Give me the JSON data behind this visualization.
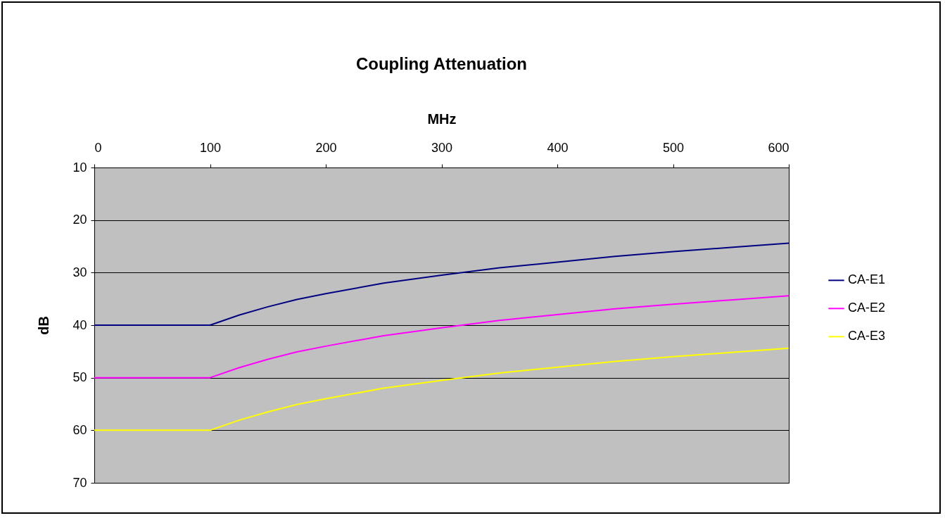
{
  "chart_data": {
    "type": "line",
    "title": "Coupling Attenuation",
    "xlabel": "MHz",
    "ylabel": "dB",
    "xlim": [
      0,
      600
    ],
    "xticks": [
      0,
      100,
      200,
      300,
      400,
      500,
      600
    ],
    "ylim": [
      70,
      10
    ],
    "yticks": [
      10,
      20,
      30,
      40,
      50,
      60,
      70
    ],
    "grid": "y",
    "legend": "right",
    "x": [
      0,
      100,
      125,
      150,
      175,
      200,
      250,
      300,
      350,
      400,
      450,
      500,
      550,
      600
    ],
    "series": [
      {
        "name": "CA-E1",
        "color": "#000080",
        "values": [
          40,
          40,
          38.1,
          36.5,
          35.1,
          34,
          32,
          30.5,
          29.1,
          28,
          26.9,
          26,
          25.2,
          24.4
        ]
      },
      {
        "name": "CA-E2",
        "color": "#ff00ff",
        "values": [
          50,
          50,
          48.1,
          46.5,
          45.1,
          44,
          42,
          40.5,
          39.1,
          38,
          36.9,
          36,
          35.2,
          34.4
        ]
      },
      {
        "name": "CA-E3",
        "color": "#ffff00",
        "values": [
          60,
          60,
          58.1,
          56.5,
          55.1,
          54,
          52,
          50.5,
          49.1,
          48,
          46.9,
          46,
          45.2,
          44.4
        ]
      }
    ]
  }
}
